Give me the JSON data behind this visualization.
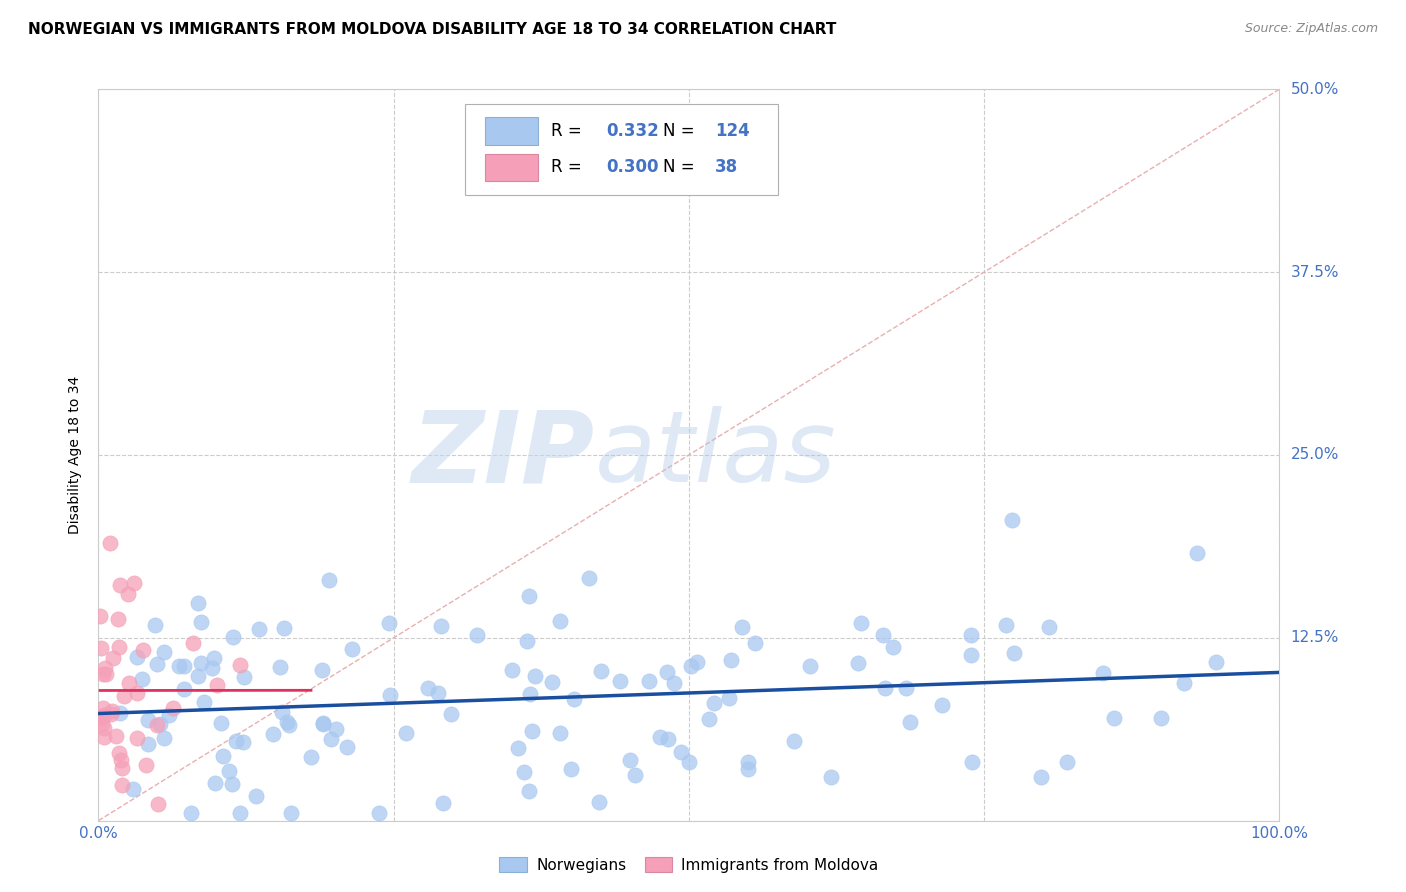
{
  "title": "NORWEGIAN VS IMMIGRANTS FROM MOLDOVA DISABILITY AGE 18 TO 34 CORRELATION CHART",
  "source": "Source: ZipAtlas.com",
  "ylabel": "Disability Age 18 to 34",
  "xlim": [
    0,
    1
  ],
  "ylim": [
    0,
    0.5
  ],
  "yticks": [
    0.0,
    0.125,
    0.25,
    0.375,
    0.5
  ],
  "yticklabels": [
    "",
    "12.5%",
    "25.0%",
    "37.5%",
    "50.0%"
  ],
  "norwegian_color": "#a8c8f0",
  "moldovan_color": "#f5a0b8",
  "regression_blue": "#1a4fa0",
  "regression_pink": "#e03060",
  "watermark_zip": "ZIP",
  "watermark_atlas": "atlas",
  "background_color": "#ffffff",
  "grid_color": "#cccccc",
  "tick_color": "#4472c4",
  "title_fontsize": 11,
  "label_fontsize": 10,
  "tick_fontsize": 11,
  "legend_fontsize": 12,
  "R_norwegian": "0.332",
  "N_norwegian": "124",
  "R_moldovan": "0.300",
  "N_moldovan": "38"
}
